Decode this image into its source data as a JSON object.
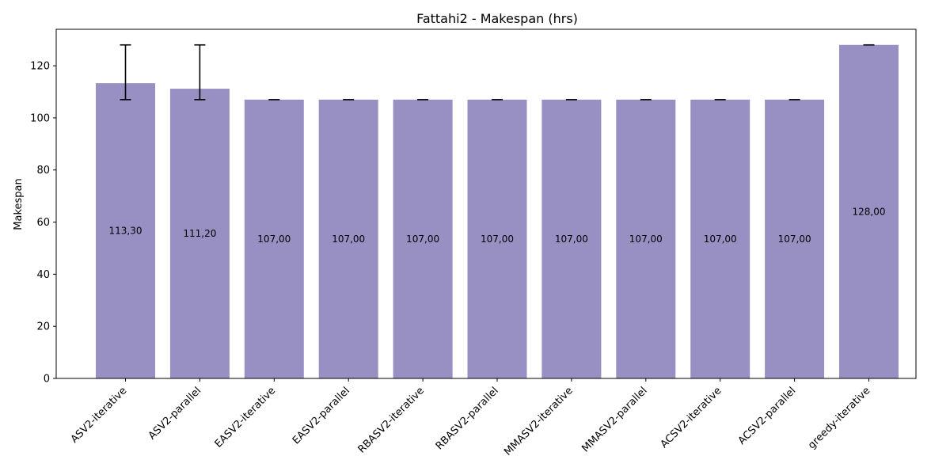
{
  "chart_data": {
    "type": "bar",
    "title": "Fattahi2 - Makespan (hrs)",
    "xlabel": "",
    "ylabel": "Makespan",
    "ylim": [
      0,
      134
    ],
    "yticks": [
      0,
      20,
      40,
      60,
      80,
      100,
      120
    ],
    "grid": false,
    "bar_color": "#9890c3",
    "categories": [
      "ASV2-iterative",
      "ASV2-parallel",
      "EASV2-iterative",
      "EASV2-parallel",
      "RBASV2-iterative",
      "RBASV2-parallel",
      "MMASV2-iterative",
      "MMASV2-parallel",
      "ACSV2-iterative",
      "ACSV2-parallel",
      "greedy-iterative"
    ],
    "values": [
      113.3,
      111.2,
      107.0,
      107.0,
      107.0,
      107.0,
      107.0,
      107.0,
      107.0,
      107.0,
      128.0
    ],
    "value_labels": [
      "113,30",
      "111,20",
      "107,00",
      "107,00",
      "107,00",
      "107,00",
      "107,00",
      "107,00",
      "107,00",
      "107,00",
      "128,00"
    ],
    "error_low": [
      107.0,
      107.0,
      107.0,
      107.0,
      107.0,
      107.0,
      107.0,
      107.0,
      107.0,
      107.0,
      128.0
    ],
    "error_high": [
      128.0,
      128.0,
      107.0,
      107.0,
      107.0,
      107.0,
      107.0,
      107.0,
      107.0,
      107.0,
      128.0
    ]
  }
}
